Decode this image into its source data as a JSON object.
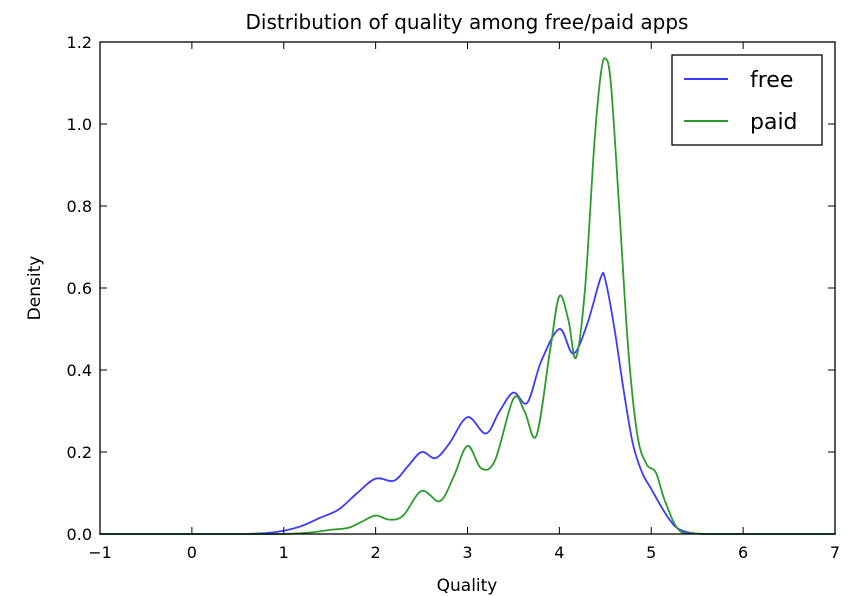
{
  "chart_data": {
    "type": "line",
    "title": "Distribution of quality among free/paid apps",
    "xlabel": "Quality",
    "ylabel": "Density",
    "xlim": [
      -1,
      7
    ],
    "ylim": [
      0,
      1.2
    ],
    "xticks": [
      -1,
      0,
      1,
      2,
      3,
      4,
      5,
      6,
      7
    ],
    "yticks": [
      0.0,
      0.2,
      0.4,
      0.6,
      0.8,
      1.0,
      1.2
    ],
    "xtick_labels": [
      "−1",
      "0",
      "1",
      "2",
      "3",
      "4",
      "5",
      "6",
      "7"
    ],
    "ytick_labels": [
      "0.0",
      "0.2",
      "0.4",
      "0.6",
      "0.8",
      "1.0",
      "1.2"
    ],
    "grid": false,
    "legend_position": "top-right",
    "series": [
      {
        "name": "free",
        "color": "#3b3bff",
        "x": [
          -1,
          -0.5,
          0,
          0.5,
          0.8,
          1.0,
          1.2,
          1.4,
          1.6,
          1.8,
          2.0,
          2.2,
          2.35,
          2.5,
          2.65,
          2.8,
          3.0,
          3.2,
          3.35,
          3.5,
          3.65,
          3.8,
          4.0,
          4.15,
          4.3,
          4.45,
          4.5,
          4.6,
          4.7,
          4.8,
          4.9,
          5.0,
          5.1,
          5.2,
          5.3,
          5.5,
          6.0,
          7.0
        ],
        "y": [
          0,
          0,
          0,
          0,
          0.002,
          0.008,
          0.02,
          0.04,
          0.06,
          0.1,
          0.135,
          0.13,
          0.165,
          0.2,
          0.185,
          0.22,
          0.285,
          0.245,
          0.3,
          0.345,
          0.32,
          0.42,
          0.5,
          0.44,
          0.51,
          0.625,
          0.62,
          0.5,
          0.35,
          0.22,
          0.15,
          0.11,
          0.07,
          0.035,
          0.012,
          0.001,
          0,
          0
        ]
      },
      {
        "name": "paid",
        "color": "#2e9a2e",
        "x": [
          -1,
          -0.5,
          0,
          0.5,
          1.0,
          1.3,
          1.5,
          1.7,
          1.85,
          2.0,
          2.15,
          2.3,
          2.5,
          2.7,
          2.85,
          3.0,
          3.15,
          3.3,
          3.5,
          3.62,
          3.75,
          3.9,
          4.0,
          4.1,
          4.18,
          4.28,
          4.38,
          4.45,
          4.5,
          4.56,
          4.65,
          4.75,
          4.85,
          4.95,
          5.05,
          5.15,
          5.3,
          5.5,
          6.0,
          7.0
        ],
        "y": [
          0,
          0,
          0,
          0,
          0,
          0.004,
          0.01,
          0.015,
          0.03,
          0.045,
          0.035,
          0.045,
          0.105,
          0.08,
          0.14,
          0.215,
          0.16,
          0.18,
          0.33,
          0.3,
          0.24,
          0.45,
          0.58,
          0.52,
          0.43,
          0.6,
          0.95,
          1.12,
          1.16,
          1.1,
          0.8,
          0.45,
          0.24,
          0.17,
          0.15,
          0.08,
          0.01,
          0.001,
          0,
          0
        ]
      }
    ]
  }
}
